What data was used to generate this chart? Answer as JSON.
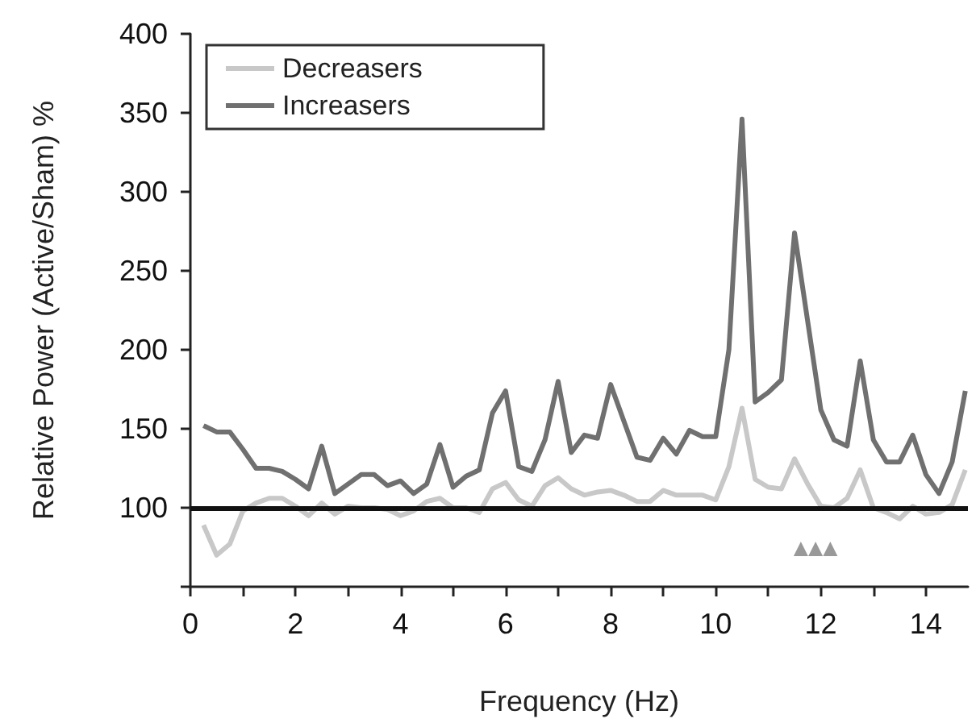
{
  "chart_data": {
    "type": "line",
    "xlabel": "Frequency (Hz)",
    "ylabel": "Relative Power (Active/Sham) %",
    "x": [
      0.25,
      0.5,
      0.75,
      1,
      1.25,
      1.5,
      1.75,
      2,
      2.25,
      2.5,
      2.75,
      3,
      3.25,
      3.5,
      3.75,
      4,
      4.25,
      4.5,
      4.75,
      5,
      5.25,
      5.5,
      5.75,
      6,
      6.25,
      6.5,
      6.75,
      7,
      7.25,
      7.5,
      7.75,
      8,
      8.25,
      8.5,
      8.75,
      9,
      9.25,
      9.5,
      9.75,
      10,
      10.25,
      10.5,
      10.75,
      11,
      11.25,
      11.5,
      11.75,
      12,
      12.25,
      12.5,
      12.75,
      13,
      13.25,
      13.5,
      13.75,
      14,
      14.25,
      14.5,
      14.75
    ],
    "series": [
      {
        "name": "Decreasers",
        "color": "#c8c8c8",
        "values": [
          89,
          70,
          77,
          98,
          103,
          106,
          106,
          101,
          95,
          103,
          96,
          101,
          100,
          100,
          99,
          95,
          98,
          104,
          106,
          100,
          100,
          97,
          112,
          116,
          105,
          101,
          114,
          119,
          112,
          108,
          110,
          111,
          108,
          104,
          104,
          111,
          108,
          108,
          108,
          105,
          126,
          163,
          118,
          113,
          112,
          131,
          115,
          101,
          100,
          106,
          124,
          100,
          97,
          93,
          101,
          96,
          97,
          102,
          124
        ]
      },
      {
        "name": "Increasers",
        "color": "#707070",
        "values": [
          152,
          148,
          148,
          137,
          125,
          125,
          123,
          118,
          112,
          139,
          109,
          115,
          121,
          121,
          114,
          117,
          109,
          115,
          140,
          113,
          120,
          124,
          160,
          174,
          126,
          123,
          143,
          180,
          135,
          146,
          144,
          178,
          155,
          132,
          130,
          144,
          134,
          149,
          145,
          145,
          200,
          346,
          167,
          173,
          181,
          274,
          218,
          162,
          143,
          139,
          193,
          143,
          129,
          129,
          146,
          121,
          109,
          129,
          174
        ]
      },
      {
        "type": "scatter",
        "color": "#808080",
        "marker": "triangle",
        "x": [
          11.62,
          11.9,
          12.18
        ],
        "values": [
          74,
          74,
          74
        ]
      }
    ],
    "xlim": [
      0,
      14.8
    ],
    "xticks": [
      0,
      {
        "value": 1,
        "label": null
      },
      2,
      {
        "value": 3,
        "label": null
      },
      4,
      {
        "value": 5,
        "label": null
      },
      6,
      {
        "value": 7,
        "label": null
      },
      8,
      {
        "value": 9,
        "label": null
      },
      10,
      {
        "value": 11,
        "label": null
      },
      12,
      {
        "value": 13,
        "label": null
      },
      14
    ],
    "ylim": [
      50,
      400
    ],
    "yticks": [
      {
        "value": 50,
        "label": null
      },
      100,
      150,
      200,
      250,
      300,
      350,
      400
    ],
    "ref_lines": [
      {
        "axis": "y",
        "value": 100,
        "color": "#111111"
      }
    ],
    "grid": false,
    "legend": "top left",
    "marker": "none",
    "line_style": "solid"
  }
}
